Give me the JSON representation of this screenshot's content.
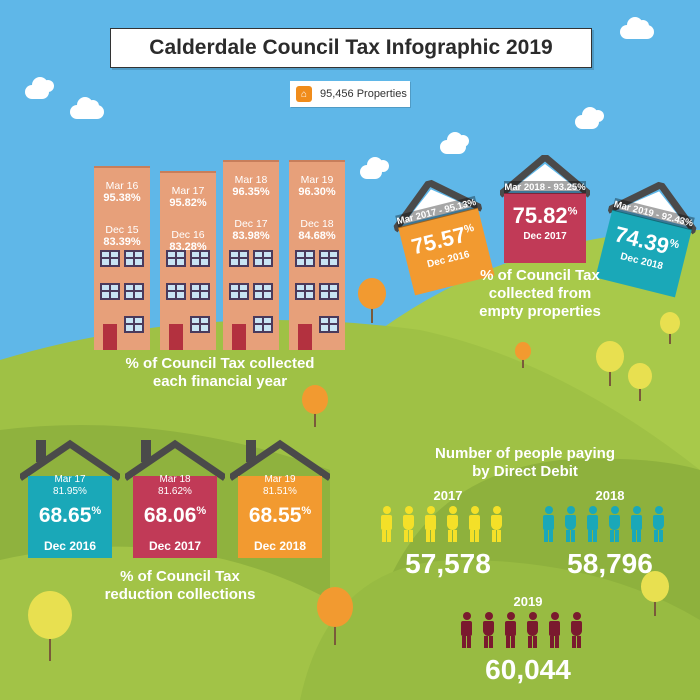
{
  "title": "Calderdale Council Tax Infographic 2019",
  "properties": {
    "icon": "house-icon",
    "text": "95,456 Properties"
  },
  "colors": {
    "sky": "#5fb7e8",
    "hill_light": "#a8c94a",
    "hill_dark": "#8fb23e",
    "brick": "#e7a07a",
    "teal": "#1aa8b8",
    "crimson": "#c13a57",
    "orange": "#f29a30",
    "yellow": "#f4e028",
    "maroon": "#7a1a2e"
  },
  "collection_section": {
    "label_line1": "% of Council Tax collected",
    "label_line2": "each financial year",
    "towers": [
      {
        "top_period": "Mar 16",
        "top_pct": "95.38%",
        "bottom_period": "Dec 15",
        "bottom_pct": "83.39%"
      },
      {
        "top_period": "Mar 17",
        "top_pct": "95.82%",
        "bottom_period": "Dec 16",
        "bottom_pct": "83.28%"
      },
      {
        "top_period": "Mar 18",
        "top_pct": "96.35%",
        "bottom_period": "Dec 17",
        "bottom_pct": "83.98%"
      },
      {
        "top_period": "Mar 19",
        "top_pct": "96.30%",
        "bottom_period": "Dec 18",
        "bottom_pct": "84.68%"
      }
    ]
  },
  "empty_section": {
    "label_line1": "% of Council Tax",
    "label_line2": "collected from",
    "label_line3": "empty properties",
    "houses": [
      {
        "header": "Mar 2017 - 95.13%",
        "value": "75.57",
        "pct": "%",
        "period": "Dec 2016"
      },
      {
        "header": "Mar 2018 - 93.25%",
        "value": "75.82",
        "pct": "%",
        "period": "Dec 2017"
      },
      {
        "header": "Mar 2019 - 92.43%",
        "value": "74.39",
        "pct": "%",
        "period": "Dec 2018"
      }
    ]
  },
  "reduction_section": {
    "label_line1": "% of Council Tax",
    "label_line2": "reduction collections",
    "houses": [
      {
        "top_period": "Mar 17",
        "top_pct": "81.95%",
        "value": "68.65",
        "pct": "%",
        "period": "Dec 2016"
      },
      {
        "top_period": "Mar 18",
        "top_pct": "81.62%",
        "value": "68.06",
        "pct": "%",
        "period": "Dec 2017"
      },
      {
        "top_period": "Mar 19",
        "top_pct": "81.51%",
        "value": "68.55",
        "pct": "%",
        "period": "Dec 2018"
      }
    ]
  },
  "direct_debit": {
    "label_line1": "Number of people paying",
    "label_line2": "by Direct Debit",
    "groups": [
      {
        "year": "2017",
        "count": "57,578"
      },
      {
        "year": "2018",
        "count": "58,796"
      },
      {
        "year": "2019",
        "count": "60,044"
      }
    ]
  }
}
